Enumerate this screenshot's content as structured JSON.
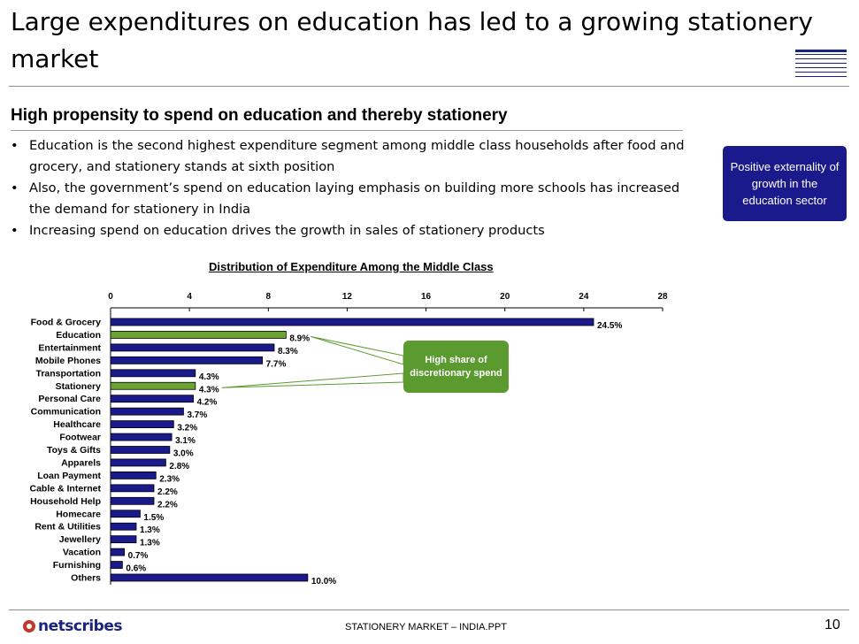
{
  "slide": {
    "title": "Large expenditures on education has led to a growing stationery market",
    "subheading": "High propensity to spend on education and thereby stationery",
    "bullet_char": "•",
    "bullets": [
      "Education is the second highest expenditure segment among middle class households after food and grocery, and stationery stands at sixth position",
      "Also, the government’s spend on education laying emphasis on building more schools has increased the demand for stationery in India",
      "Increasing spend on education drives the growth in sales of stationery products"
    ],
    "callout": "Positive externality of growth in the education sector",
    "annotation": "High share of discretionary spend"
  },
  "footer": {
    "logo_text": "netscribes",
    "center": "STATIONERY MARKET – INDIA.PPT",
    "page": "10"
  },
  "colors": {
    "bar_default": "#1a1a8c",
    "bar_highlight": "#6aa332",
    "callout_bg": "#1a1a8c",
    "annotation_bg": "#5a9a2e"
  },
  "chart_data": {
    "type": "bar",
    "orientation": "horizontal",
    "title": "Distribution of Expenditure Among the Middle Class",
    "xlim": [
      0,
      28
    ],
    "ticks": [
      0,
      4,
      8,
      12,
      16,
      20,
      24,
      28
    ],
    "value_suffix": "%",
    "categories": [
      "Food & Grocery",
      "Education",
      "Entertainment",
      "Mobile Phones",
      "Transportation",
      "Stationery",
      "Personal Care",
      "Communication",
      "Healthcare",
      "Footwear",
      "Toys & Gifts",
      "Apparels",
      "Loan Payment",
      "Cable & Internet",
      "Household Help",
      "Homecare",
      "Rent & Utilities",
      "Jewellery",
      "Vacation",
      "Furnishing",
      "Others"
    ],
    "values": [
      24.5,
      8.9,
      8.3,
      7.7,
      4.3,
      4.3,
      4.2,
      3.7,
      3.2,
      3.1,
      3.0,
      2.8,
      2.3,
      2.2,
      2.2,
      1.5,
      1.3,
      1.3,
      0.7,
      0.6,
      10.0
    ],
    "highlighted": [
      "Education",
      "Stationery"
    ],
    "legend": "none"
  }
}
